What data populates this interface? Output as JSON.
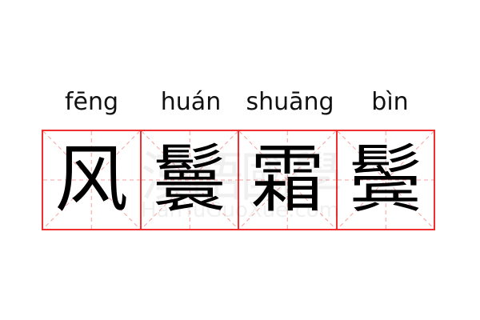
{
  "words": [
    {
      "pinyin": "fēng",
      "hanzi": "风"
    },
    {
      "pinyin": "huán",
      "hanzi": "鬟"
    },
    {
      "pinyin": "shuāng",
      "hanzi": "霜"
    },
    {
      "pinyin": "bìn",
      "hanzi": "鬓"
    }
  ],
  "watermark": {
    "text": "漢語國學",
    "url": "HanYuGuoXue.com"
  },
  "colors": {
    "grid_border": "#f03030",
    "guide_lines": "#f5a0a0"
  }
}
